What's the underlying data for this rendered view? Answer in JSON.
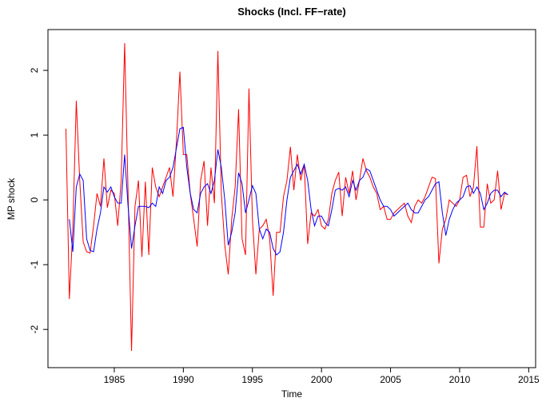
{
  "chart_data": {
    "type": "line",
    "title": "Shocks (Incl. FF−rate)",
    "x_label": "Time",
    "y_label": "MP shock",
    "x": [
      1981.5,
      1981.75,
      1982,
      1982.25,
      1982.5,
      1982.75,
      1983,
      1983.25,
      1983.5,
      1983.75,
      1984,
      1984.25,
      1984.5,
      1984.75,
      1985,
      1985.25,
      1985.5,
      1985.75,
      1986,
      1986.25,
      1986.5,
      1986.75,
      1987,
      1987.25,
      1987.5,
      1987.75,
      1988,
      1988.25,
      1988.5,
      1988.75,
      1989,
      1989.25,
      1989.5,
      1989.75,
      1990,
      1990.25,
      1990.5,
      1990.75,
      1991,
      1991.25,
      1991.5,
      1991.75,
      1992,
      1992.25,
      1992.5,
      1992.75,
      1993,
      1993.25,
      1993.5,
      1993.75,
      1994,
      1994.25,
      1994.5,
      1994.75,
      1995,
      1995.25,
      1995.5,
      1995.75,
      1996,
      1996.25,
      1996.5,
      1996.75,
      1997,
      1997.25,
      1997.5,
      1997.75,
      1998,
      1998.25,
      1998.5,
      1998.75,
      1999,
      1999.25,
      1999.5,
      1999.75,
      2000,
      2000.25,
      2000.5,
      2000.75,
      2001,
      2001.25,
      2001.5,
      2001.75,
      2002,
      2002.25,
      2002.5,
      2002.75,
      2003,
      2003.25,
      2003.5,
      2003.75,
      2004,
      2004.25,
      2004.5,
      2004.75,
      2005,
      2005.25,
      2005.5,
      2005.75,
      2006,
      2006.25,
      2006.5,
      2006.75,
      2007,
      2007.25,
      2007.5,
      2007.75,
      2008,
      2008.25,
      2008.5,
      2008.75,
      2009,
      2009.25,
      2009.5,
      2009.75,
      2010,
      2010.25,
      2010.5,
      2010.75,
      2011,
      2011.25,
      2011.5,
      2011.75,
      2012,
      2012.25,
      2012.5,
      2012.75,
      2013,
      2013.25,
      2013.5
    ],
    "series": [
      {
        "color": "#ff0000",
        "values": [
          1.1,
          -1.53,
          -0.45,
          1.53,
          0.3,
          -0.65,
          -0.8,
          -0.82,
          -0.4,
          0.1,
          -0.1,
          0.64,
          -0.12,
          0.15,
          0.1,
          -0.4,
          0.3,
          2.42,
          0.1,
          -2.33,
          -0.1,
          0.3,
          -0.88,
          0.28,
          -0.85,
          0.5,
          0.2,
          0.05,
          0.2,
          0.35,
          0.5,
          0.05,
          0.9,
          1.98,
          0.7,
          0.7,
          0.1,
          -0.3,
          -0.72,
          0.3,
          0.6,
          -0.4,
          0.5,
          -0.05,
          2.3,
          0.1,
          -0.7,
          -1.15,
          -0.3,
          0.2,
          1.4,
          -0.6,
          -0.85,
          1.72,
          -0.3,
          -1.15,
          -0.45,
          -0.4,
          -0.3,
          -0.6,
          -1.48,
          -0.5,
          -0.5,
          0.05,
          0.3,
          0.82,
          0.15,
          0.7,
          0.3,
          0.55,
          -0.68,
          -0.2,
          -0.25,
          -0.15,
          -0.4,
          -0.45,
          -0.3,
          0.1,
          0.3,
          0.43,
          -0.25,
          0.35,
          0.1,
          0.45,
          0.0,
          0.3,
          0.64,
          0.45,
          0.35,
          0.2,
          0.1,
          -0.15,
          -0.1,
          -0.3,
          -0.3,
          -0.2,
          -0.15,
          -0.1,
          -0.05,
          -0.25,
          -0.35,
          -0.1,
          0.0,
          -0.05,
          0.05,
          0.2,
          0.35,
          0.33,
          -0.98,
          -0.45,
          -0.3,
          0.0,
          -0.05,
          -0.1,
          0.0,
          0.35,
          0.38,
          0.05,
          0.2,
          0.83,
          -0.42,
          -0.42,
          0.25,
          -0.05,
          0.0,
          0.45,
          -0.15,
          0.1,
          0.08
        ]
      },
      {
        "color": "#0000ff",
        "values": [
          null,
          -0.3,
          -0.8,
          0.2,
          0.4,
          0.3,
          -0.6,
          -0.78,
          -0.8,
          -0.45,
          -0.2,
          0.2,
          0.12,
          0.2,
          0.05,
          -0.05,
          -0.05,
          0.7,
          -0.1,
          -0.75,
          -0.4,
          -0.1,
          -0.1,
          -0.1,
          -0.12,
          -0.05,
          -0.1,
          0.2,
          0.1,
          0.3,
          0.35,
          0.5,
          0.8,
          1.1,
          1.12,
          0.5,
          0.1,
          -0.15,
          -0.2,
          0.1,
          0.2,
          0.25,
          0.1,
          0.3,
          0.78,
          0.5,
          0.0,
          -0.7,
          -0.5,
          -0.2,
          0.42,
          0.25,
          -0.2,
          0.0,
          0.22,
          0.1,
          -0.45,
          -0.6,
          -0.45,
          -0.5,
          -0.75,
          -0.85,
          -0.8,
          -0.5,
          0.0,
          0.35,
          0.45,
          0.55,
          0.4,
          0.55,
          0.3,
          -0.15,
          -0.4,
          -0.25,
          -0.25,
          -0.35,
          -0.4,
          -0.15,
          0.15,
          0.18,
          0.15,
          0.2,
          0.05,
          0.3,
          0.15,
          0.3,
          0.35,
          0.48,
          0.45,
          0.3,
          0.15,
          0.0,
          -0.1,
          -0.1,
          -0.15,
          -0.25,
          -0.2,
          -0.15,
          -0.1,
          -0.05,
          -0.15,
          -0.2,
          -0.2,
          -0.1,
          0.0,
          0.05,
          0.15,
          0.25,
          0.28,
          -0.2,
          -0.55,
          -0.3,
          -0.15,
          -0.05,
          0.0,
          0.05,
          0.2,
          0.22,
          0.1,
          0.2,
          0.1,
          -0.15,
          -0.05,
          0.1,
          0.15,
          0.15,
          0.05,
          0.12,
          0.08
        ]
      }
    ],
    "xlim": [
      1980.2,
      2015.5
    ],
    "xticks": [
      1985,
      1990,
      1995,
      2000,
      2005,
      2010,
      2015
    ],
    "ylim": [
      -2.59,
      2.63
    ],
    "yticks": [
      -2,
      -1,
      0,
      1,
      2
    ]
  }
}
